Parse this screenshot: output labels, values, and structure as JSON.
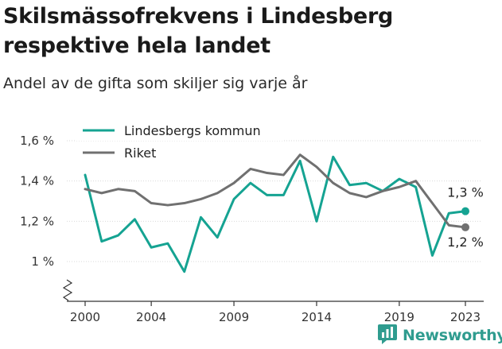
{
  "header": {
    "title": "Skilsmässofrekvens i Lindesberg respektive hela landet",
    "subtitle": "Andel av de gifta som skiljer sig varje år"
  },
  "brand": {
    "name": "Newsworthy",
    "icon": "newsworthy-logo-icon"
  },
  "colors": {
    "lindesberg": "#15a392",
    "riket": "#707070",
    "grid": "#d9d9d9",
    "axis": "#333333"
  },
  "chart_data": {
    "type": "line",
    "x": [
      2000,
      2001,
      2002,
      2003,
      2004,
      2005,
      2006,
      2007,
      2008,
      2009,
      2010,
      2011,
      2012,
      2013,
      2014,
      2015,
      2016,
      2017,
      2018,
      2019,
      2020,
      2021,
      2022,
      2023
    ],
    "x_ticks": [
      2000,
      2004,
      2009,
      2014,
      2019,
      2023
    ],
    "y_ticks": [
      {
        "value": 1.0,
        "label": "1 %"
      },
      {
        "value": 1.2,
        "label": "1,2 %"
      },
      {
        "value": 1.4,
        "label": "1,4 %"
      },
      {
        "value": 1.6,
        "label": "1,6 %"
      }
    ],
    "ylim": [
      0.85,
      1.6
    ],
    "axis_break": true,
    "grid": true,
    "legend_position": "top-left",
    "series": [
      {
        "name": "Lindesbergs kommun",
        "color": "#15a392",
        "values": [
          1.43,
          1.1,
          1.13,
          1.21,
          1.07,
          1.09,
          0.95,
          1.22,
          1.12,
          1.31,
          1.39,
          1.33,
          1.33,
          1.5,
          1.2,
          1.52,
          1.38,
          1.39,
          1.35,
          1.41,
          1.37,
          1.03,
          1.24,
          1.25
        ],
        "end_label": "1,3 %"
      },
      {
        "name": "Riket",
        "color": "#707070",
        "values": [
          1.36,
          1.34,
          1.36,
          1.35,
          1.29,
          1.28,
          1.29,
          1.31,
          1.34,
          1.39,
          1.46,
          1.44,
          1.43,
          1.53,
          1.47,
          1.39,
          1.34,
          1.32,
          1.35,
          1.37,
          1.4,
          1.29,
          1.18,
          1.17
        ],
        "end_label": "1,2 %"
      }
    ]
  }
}
